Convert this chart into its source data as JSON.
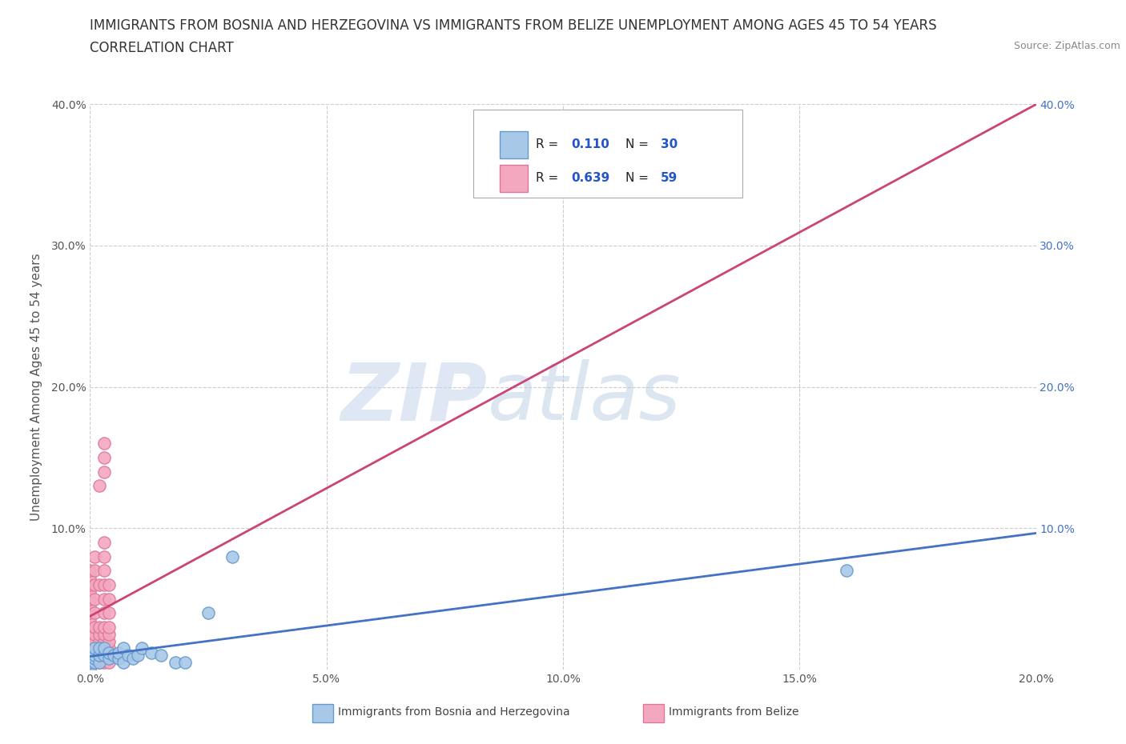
{
  "title_line1": "IMMIGRANTS FROM BOSNIA AND HERZEGOVINA VS IMMIGRANTS FROM BELIZE UNEMPLOYMENT AMONG AGES 45 TO 54 YEARS",
  "title_line2": "CORRELATION CHART",
  "source": "Source: ZipAtlas.com",
  "ylabel": "Unemployment Among Ages 45 to 54 years",
  "xlim": [
    0.0,
    0.2
  ],
  "ylim": [
    0.0,
    0.4
  ],
  "xticks": [
    0.0,
    0.05,
    0.1,
    0.15,
    0.2
  ],
  "xticklabels": [
    "0.0%",
    "5.0%",
    "10.0%",
    "15.0%",
    "20.0%"
  ],
  "yticks": [
    0.0,
    0.1,
    0.2,
    0.3,
    0.4
  ],
  "yticklabels": [
    "",
    "10.0%",
    "20.0%",
    "30.0%",
    "40.0%"
  ],
  "bosnia_color": "#a8c8e8",
  "belize_color": "#f4a8c0",
  "bosnia_edge": "#6699cc",
  "belize_edge": "#dd7799",
  "bosnia_line_color": "#4472c4",
  "belize_line_color": "#cc4477",
  "watermark_zip": "ZIP",
  "watermark_atlas": "atlas",
  "legend_R1": "0.110",
  "legend_N1": "30",
  "legend_R2": "0.639",
  "legend_N2": "59",
  "legend_label1": "Immigrants from Bosnia and Herzegovina",
  "legend_label2": "Immigrants from Belize",
  "bosnia_x": [
    0.0,
    0.0,
    0.0,
    0.001,
    0.001,
    0.001,
    0.001,
    0.002,
    0.002,
    0.002,
    0.003,
    0.003,
    0.004,
    0.004,
    0.005,
    0.006,
    0.006,
    0.007,
    0.007,
    0.008,
    0.009,
    0.01,
    0.011,
    0.013,
    0.015,
    0.018,
    0.02,
    0.025,
    0.03,
    0.16
  ],
  "bosnia_y": [
    0.0,
    0.005,
    0.01,
    0.005,
    0.008,
    0.01,
    0.015,
    0.005,
    0.01,
    0.015,
    0.01,
    0.015,
    0.008,
    0.012,
    0.01,
    0.008,
    0.012,
    0.005,
    0.015,
    0.01,
    0.008,
    0.01,
    0.015,
    0.012,
    0.01,
    0.005,
    0.005,
    0.04,
    0.08,
    0.07
  ],
  "belize_x": [
    0.0,
    0.0,
    0.0,
    0.0,
    0.0,
    0.0,
    0.0,
    0.0,
    0.0,
    0.0,
    0.0,
    0.0,
    0.0,
    0.0,
    0.0,
    0.001,
    0.001,
    0.001,
    0.001,
    0.001,
    0.001,
    0.001,
    0.001,
    0.001,
    0.001,
    0.001,
    0.002,
    0.002,
    0.002,
    0.002,
    0.002,
    0.002,
    0.002,
    0.002,
    0.003,
    0.003,
    0.003,
    0.003,
    0.003,
    0.003,
    0.003,
    0.003,
    0.003,
    0.003,
    0.003,
    0.003,
    0.003,
    0.003,
    0.003,
    0.004,
    0.004,
    0.004,
    0.004,
    0.004,
    0.004,
    0.004,
    0.004,
    0.004,
    0.005
  ],
  "belize_y": [
    0.0,
    0.005,
    0.01,
    0.015,
    0.02,
    0.025,
    0.03,
    0.035,
    0.04,
    0.045,
    0.05,
    0.055,
    0.06,
    0.065,
    0.07,
    0.005,
    0.01,
    0.015,
    0.02,
    0.025,
    0.03,
    0.04,
    0.05,
    0.06,
    0.07,
    0.08,
    0.005,
    0.01,
    0.015,
    0.02,
    0.025,
    0.03,
    0.06,
    0.13,
    0.005,
    0.01,
    0.015,
    0.02,
    0.025,
    0.03,
    0.04,
    0.05,
    0.06,
    0.07,
    0.08,
    0.09,
    0.14,
    0.15,
    0.16,
    0.005,
    0.01,
    0.015,
    0.02,
    0.025,
    0.03,
    0.04,
    0.05,
    0.06,
    0.01
  ],
  "background_color": "#ffffff",
  "grid_color": "#cccccc",
  "right_ytick_color": "#4472c4",
  "title_fontsize": 12,
  "axis_label_fontsize": 11,
  "tick_fontsize": 10
}
